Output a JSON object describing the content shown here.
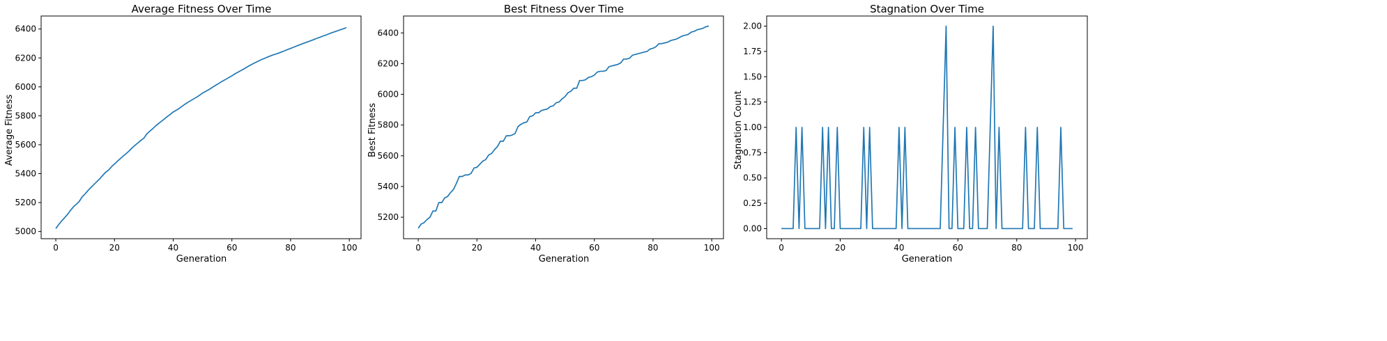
{
  "chart_data": [
    {
      "type": "line",
      "title": "Average Fitness Over Time",
      "xlabel": "Generation",
      "ylabel": "Average Fitness",
      "xlim": [
        -5,
        104
      ],
      "ylim": [
        4950,
        6490
      ],
      "xticks": [
        0,
        20,
        40,
        60,
        80,
        100
      ],
      "yticks": [
        5000,
        5200,
        5400,
        5600,
        5800,
        6000,
        6200,
        6400
      ],
      "ytick_labels": [
        "5000",
        "5200",
        "5400",
        "5600",
        "5800",
        "6000",
        "6200",
        "6400"
      ],
      "color": "#1f77b4",
      "grid": false,
      "x_start": 0,
      "series": [
        {
          "values": [
            5020,
            5048,
            5073,
            5095,
            5118,
            5146,
            5170,
            5188,
            5208,
            5240,
            5260,
            5284,
            5305,
            5325,
            5345,
            5365,
            5388,
            5410,
            5425,
            5448,
            5467,
            5486,
            5504,
            5522,
            5539,
            5557,
            5578,
            5596,
            5613,
            5630,
            5645,
            5675,
            5693,
            5710,
            5730,
            5746,
            5762,
            5778,
            5795,
            5810,
            5826,
            5838,
            5850,
            5865,
            5880,
            5893,
            5905,
            5917,
            5929,
            5942,
            5957,
            5968,
            5979,
            5992,
            6005,
            6017,
            6030,
            6042,
            6053,
            6065,
            6076,
            6090,
            6101,
            6112,
            6123,
            6135,
            6147,
            6158,
            6168,
            6178,
            6188,
            6196,
            6205,
            6213,
            6221,
            6227,
            6234,
            6242,
            6250,
            6258,
            6266,
            6274,
            6282,
            6290,
            6298,
            6305,
            6313,
            6320,
            6328,
            6336,
            6343,
            6351,
            6358,
            6366,
            6374,
            6381,
            6388,
            6395,
            6402,
            6410
          ]
        }
      ]
    },
    {
      "type": "line",
      "title": "Best Fitness Over Time",
      "xlabel": "Generation",
      "ylabel": "Best Fitness",
      "xlim": [
        -5,
        104
      ],
      "ylim": [
        5060,
        6510
      ],
      "xticks": [
        0,
        20,
        40,
        60,
        80,
        100
      ],
      "yticks": [
        5200,
        5400,
        5600,
        5800,
        6000,
        6200,
        6400
      ],
      "ytick_labels": [
        "5200",
        "5400",
        "5600",
        "5800",
        "6000",
        "6200",
        "6400"
      ],
      "color": "#1f77b4",
      "grid": false,
      "x_start": 0,
      "series": [
        {
          "values": [
            5128,
            5155,
            5165,
            5185,
            5200,
            5240,
            5240,
            5295,
            5295,
            5325,
            5335,
            5360,
            5380,
            5420,
            5465,
            5465,
            5475,
            5475,
            5485,
            5520,
            5525,
            5545,
            5565,
            5575,
            5605,
            5615,
            5640,
            5660,
            5695,
            5695,
            5730,
            5730,
            5735,
            5745,
            5790,
            5805,
            5815,
            5820,
            5855,
            5860,
            5880,
            5880,
            5895,
            5900,
            5905,
            5920,
            5925,
            5945,
            5950,
            5970,
            5985,
            6010,
            6020,
            6040,
            6040,
            6090,
            6090,
            6095,
            6110,
            6115,
            6125,
            6145,
            6150,
            6150,
            6155,
            6180,
            6185,
            6190,
            6195,
            6205,
            6230,
            6230,
            6235,
            6255,
            6260,
            6265,
            6270,
            6275,
            6280,
            6295,
            6300,
            6310,
            6330,
            6330,
            6335,
            6340,
            6350,
            6355,
            6360,
            6370,
            6380,
            6385,
            6390,
            6405,
            6410,
            6420,
            6425,
            6430,
            6440,
            6445
          ]
        }
      ]
    },
    {
      "type": "line",
      "title": "Stagnation Over Time",
      "xlabel": "Generation",
      "ylabel": "Stagnation Count",
      "xlim": [
        -5,
        104
      ],
      "ylim": [
        -0.1,
        2.1
      ],
      "xticks": [
        0,
        20,
        40,
        60,
        80,
        100
      ],
      "yticks": [
        0,
        0.25,
        0.5,
        0.75,
        1.0,
        1.25,
        1.5,
        1.75,
        2.0
      ],
      "ytick_labels": [
        "0.00",
        "0.25",
        "0.50",
        "0.75",
        "1.00",
        "1.25",
        "1.50",
        "1.75",
        "2.00"
      ],
      "color": "#1f77b4",
      "grid": false,
      "x_start": 0,
      "series": [
        {
          "values": [
            0,
            0,
            0,
            0,
            0,
            1,
            0,
            1,
            0,
            0,
            0,
            0,
            0,
            0,
            1,
            0,
            1,
            0,
            0,
            1,
            0,
            0,
            0,
            0,
            0,
            0,
            0,
            0,
            1,
            0,
            1,
            0,
            0,
            0,
            0,
            0,
            0,
            0,
            0,
            0,
            1,
            0,
            1,
            0,
            0,
            0,
            0,
            0,
            0,
            0,
            0,
            0,
            0,
            0,
            0,
            1,
            2,
            0,
            0,
            1,
            0,
            0,
            0,
            1,
            0,
            0,
            1,
            0,
            0,
            0,
            0,
            1,
            2,
            0,
            1,
            0,
            0,
            0,
            0,
            0,
            0,
            0,
            0,
            1,
            0,
            0,
            0,
            1,
            0,
            0,
            0,
            0,
            0,
            0,
            0,
            1,
            0,
            0,
            0,
            0
          ]
        }
      ]
    }
  ]
}
